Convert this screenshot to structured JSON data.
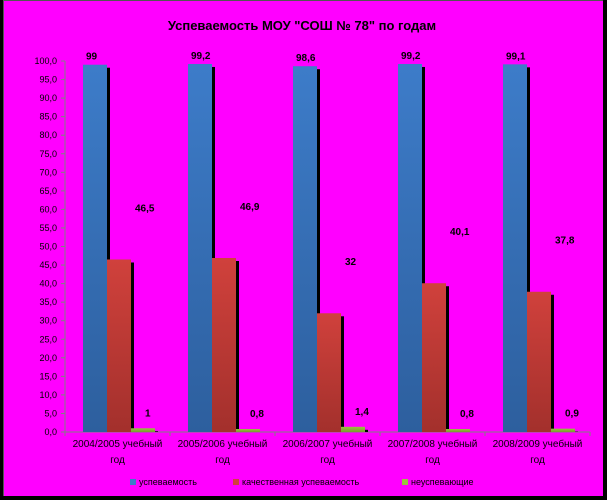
{
  "chart_data": {
    "type": "bar",
    "title": "Успеваемость МОУ \"СОШ № 78\" по годам",
    "xlabel": "",
    "ylabel": "",
    "ylim": [
      0,
      100
    ],
    "ytick_step": 5,
    "ytick_labels": [
      "0,0",
      "5,0",
      "10,0",
      "15,0",
      "20,0",
      "25,0",
      "30,0",
      "35,0",
      "40,0",
      "45,0",
      "50,0",
      "55,0",
      "60,0",
      "65,0",
      "70,0",
      "75,0",
      "80,0",
      "85,0",
      "90,0",
      "95,0",
      "100,0"
    ],
    "categories": [
      [
        "2004/2005 учебный",
        "год"
      ],
      [
        "2005/2006 учебный",
        "год"
      ],
      [
        "2006/2007 учебный",
        "год"
      ],
      [
        "2007/2008 учебный",
        "год"
      ],
      [
        "2008/2009 учебный",
        "год"
      ]
    ],
    "series": [
      {
        "name": "успеваемость",
        "color": "#3d7cc9",
        "color_dark": "#2d5f9e",
        "values": [
          99,
          99.2,
          98.6,
          99.2,
          99.1
        ],
        "labels": [
          "99",
          "99,2",
          "98,6",
          "99,2",
          "99,1"
        ]
      },
      {
        "name": "качественная успеваемость",
        "color": "#d0413c",
        "color_dark": "#a3302c",
        "values": [
          46.5,
          46.9,
          32,
          40.1,
          37.8
        ],
        "labels": [
          "46,5",
          "46,9",
          "32",
          "40,1",
          "37,8"
        ]
      },
      {
        "name": "неуспевающие",
        "color": "#9bc33f",
        "color_dark": "#7a9a30",
        "values": [
          1,
          0.8,
          1.4,
          0.8,
          0.9
        ],
        "labels": [
          "1",
          "0,8",
          "1,4",
          "0,8",
          "0,9"
        ]
      }
    ],
    "legend_position": "bottom",
    "grid": false
  },
  "colors": {
    "background": "#ff00ff",
    "axis": "#808080",
    "shadow": "#000000"
  }
}
